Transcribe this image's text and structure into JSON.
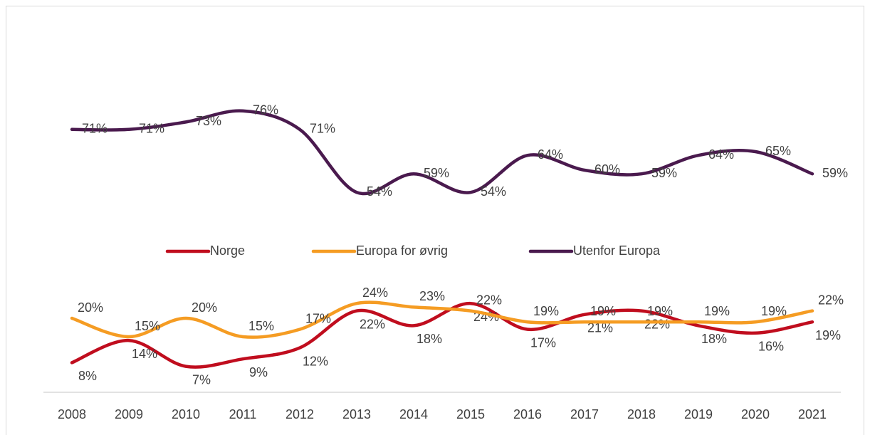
{
  "chart_data": {
    "type": "line",
    "categories": [
      "2008",
      "2009",
      "2010",
      "2011",
      "2012",
      "2013",
      "2014",
      "2015",
      "2016",
      "2017",
      "2018",
      "2019",
      "2020",
      "2021"
    ],
    "series": [
      {
        "name": "Norge",
        "color": "#c00d1e",
        "values": [
          8,
          14,
          7,
          9,
          12,
          22,
          18,
          24,
          17,
          21,
          22,
          18,
          16,
          19
        ]
      },
      {
        "name": "Europa for øvrig",
        "color": "#f59c23",
        "values": [
          20,
          15,
          20,
          15,
          17,
          24,
          23,
          22,
          19,
          19,
          19,
          19,
          19,
          22
        ]
      },
      {
        "name": "Utenfor Europa",
        "color": "#4a1a4e",
        "values": [
          71,
          71,
          73,
          76,
          71,
          54,
          59,
          54,
          64,
          60,
          59,
          64,
          65,
          59
        ]
      }
    ],
    "value_labels": [
      [
        "8%",
        "14%",
        "7%",
        "9%",
        "12%",
        "22%",
        "18%",
        "24%",
        "17%",
        "21%",
        "22%",
        "18%",
        "16%",
        "19%"
      ],
      [
        "20%",
        "15%",
        "20%",
        "15%",
        "17%",
        "24%",
        "23%",
        "22%",
        "19%",
        "19%",
        "19%",
        "19%",
        "19%",
        "22%"
      ],
      [
        "71%",
        "71%",
        "73%",
        "76%",
        "71%",
        "54%",
        "59%",
        "54%",
        "64%",
        "60%",
        "59%",
        "64%",
        "65%",
        "59%"
      ]
    ],
    "ylim": [
      0,
      80
    ],
    "legend": "middle"
  }
}
